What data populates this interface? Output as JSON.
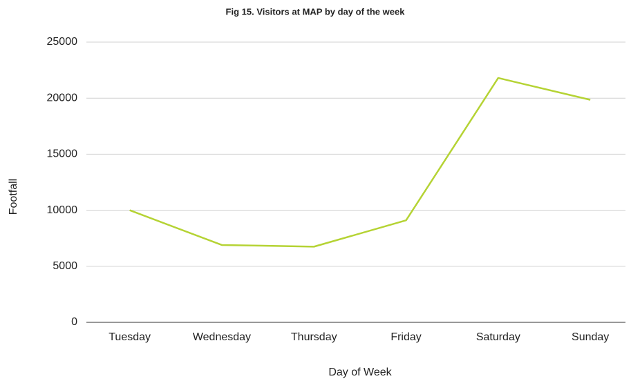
{
  "chart_data": {
    "type": "line",
    "title": "Fig 15. Visitors at MAP by day of the week",
    "x_label": "Day of Week",
    "y_label": "Footfall",
    "categories": [
      "Tuesday",
      "Wednesday",
      "Thursday",
      "Friday",
      "Saturday",
      "Sunday"
    ],
    "series": [
      {
        "name": "Footfall",
        "color": "#b5d334",
        "values": [
          10000,
          6900,
          6750,
          9100,
          21800,
          19850
        ]
      }
    ],
    "ylim": [
      0,
      25000
    ],
    "yticks": [
      0,
      5000,
      10000,
      15000,
      20000,
      25000
    ],
    "grid": true
  }
}
